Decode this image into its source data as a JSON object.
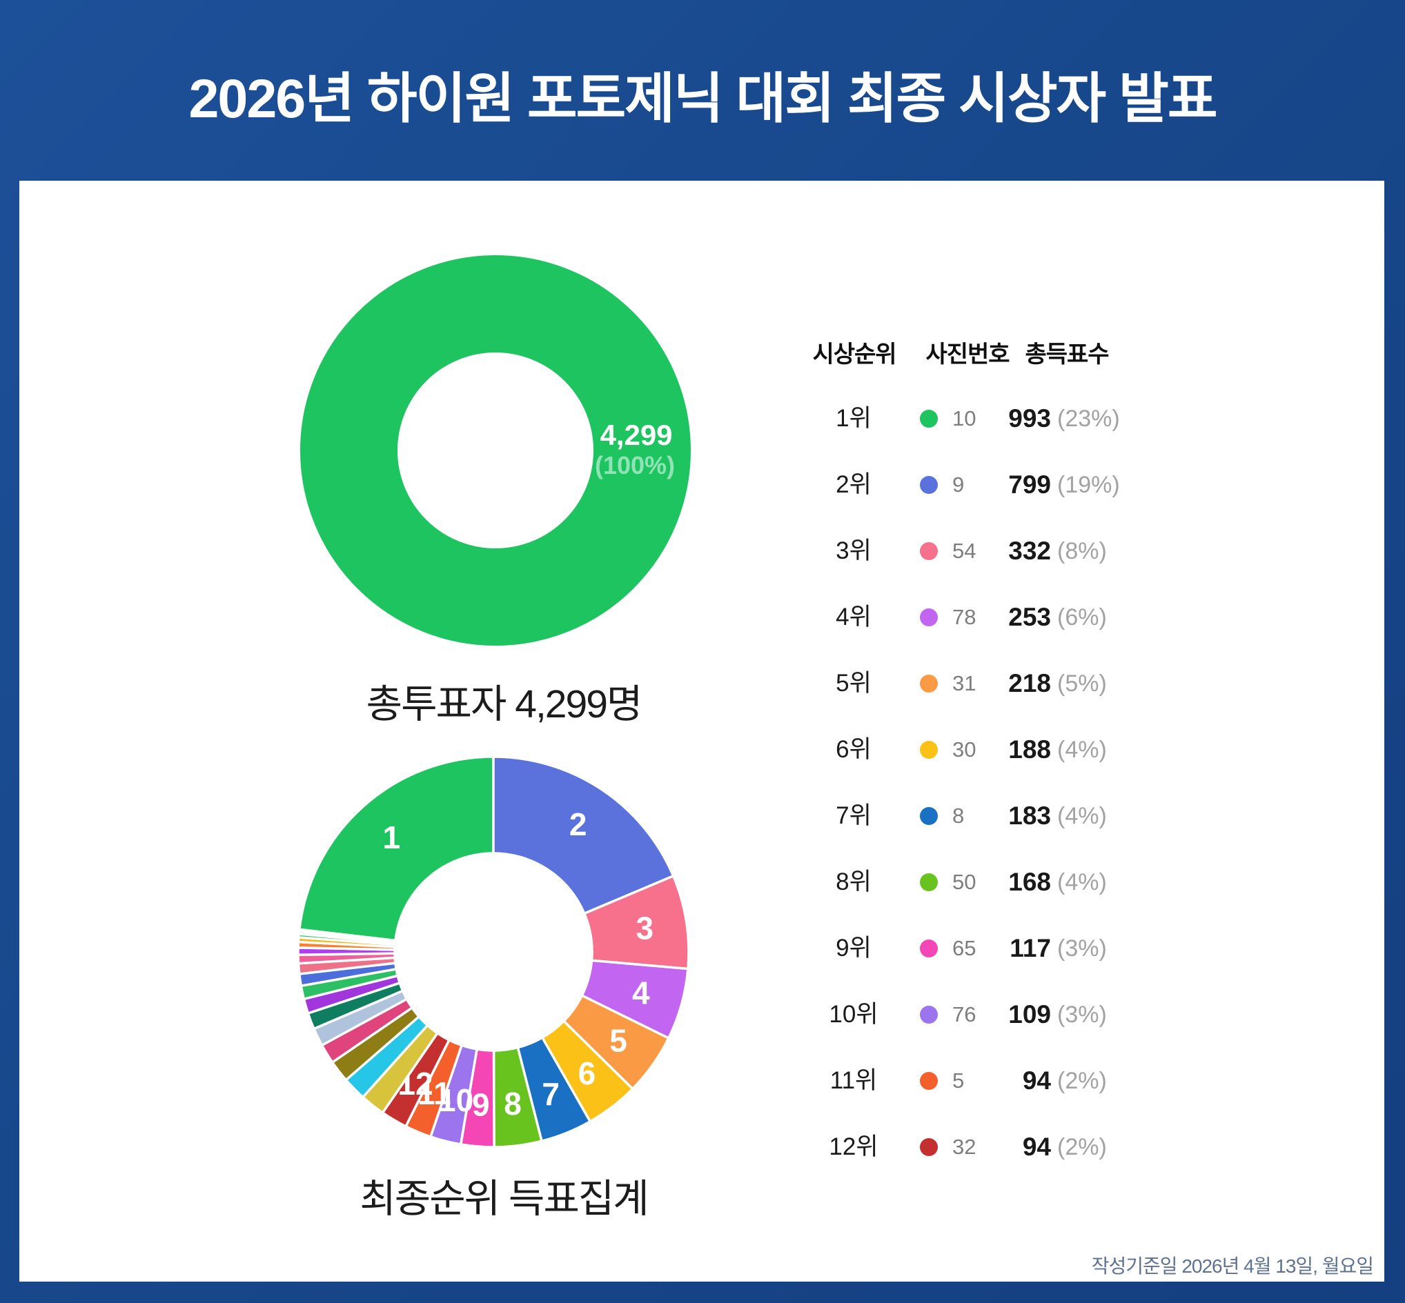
{
  "title": "2026년 하이원 포토제닉 대회 최종 시상자 발표",
  "footer": "작성기준일 2026년 4월 13일, 월요일",
  "colors": {
    "background": "#174689",
    "panel": "#ffffff",
    "title_text": "#ffffff",
    "footer_text": "#5d7292",
    "slice_label_text": "#ffffff",
    "total_center_pct_text": "#8fe3b5"
  },
  "donut_total": {
    "caption": "총투표자 4,299명",
    "center_value": "4,299",
    "center_pct": "(100%)",
    "color": "#1ec45f"
  },
  "donut_ranking": {
    "caption": "최종순위 득표집계"
  },
  "table": {
    "headers": [
      "시상순위",
      "사진번호",
      "총득표수"
    ],
    "rows": [
      {
        "rank": "1위",
        "photo": "10",
        "votes": "993",
        "pct": "(23%)",
        "color": "#1ec45f"
      },
      {
        "rank": "2위",
        "photo": "9",
        "votes": "799",
        "pct": "(19%)",
        "color": "#5b72dd"
      },
      {
        "rank": "3위",
        "photo": "54",
        "votes": "332",
        "pct": "(8%)",
        "color": "#f7708c"
      },
      {
        "rank": "4위",
        "photo": "78",
        "votes": "253",
        "pct": "(6%)",
        "color": "#c266f2"
      },
      {
        "rank": "5위",
        "photo": "31",
        "votes": "218",
        "pct": "(5%)",
        "color": "#fa9a45"
      },
      {
        "rank": "6위",
        "photo": "30",
        "votes": "188",
        "pct": "(4%)",
        "color": "#fcc117"
      },
      {
        "rank": "7위",
        "photo": "8",
        "votes": "183",
        "pct": "(4%)",
        "color": "#1a70c2"
      },
      {
        "rank": "8위",
        "photo": "50",
        "votes": "168",
        "pct": "(4%)",
        "color": "#68c31f"
      },
      {
        "rank": "9위",
        "photo": "65",
        "votes": "117",
        "pct": "(3%)",
        "color": "#f546b6"
      },
      {
        "rank": "10위",
        "photo": "76",
        "votes": "109",
        "pct": "(3%)",
        "color": "#9b74ee"
      },
      {
        "rank": "11위",
        "photo": "5",
        "votes": "94",
        "pct": "(2%)",
        "color": "#f4602b"
      },
      {
        "rank": "12위",
        "photo": "32",
        "votes": "94",
        "pct": "(2%)",
        "color": "#c43030"
      }
    ]
  },
  "chart_data": [
    {
      "type": "pie",
      "subtype": "donut",
      "title": "총투표자 4,299명",
      "labels": [
        "총투표자"
      ],
      "values": [
        4299
      ],
      "pct_labels": [
        "100%"
      ],
      "colors": [
        "#1ec45f"
      ],
      "center_label": "4,299 (100%)",
      "legend": "none"
    },
    {
      "type": "pie",
      "subtype": "donut",
      "title": "최종순위 득표집계",
      "total_votes": 4299,
      "labels": [
        "1",
        "2",
        "3",
        "4",
        "5",
        "6",
        "7",
        "8",
        "9",
        "10",
        "11",
        "12"
      ],
      "values": [
        993,
        799,
        332,
        253,
        218,
        188,
        183,
        168,
        117,
        109,
        94,
        94
      ],
      "pct_labels": [
        "23%",
        "19%",
        "8%",
        "6%",
        "5%",
        "4%",
        "4%",
        "4%",
        "3%",
        "3%",
        "2%",
        "2%"
      ],
      "colors": [
        "#1ec45f",
        "#5b72dd",
        "#f7708c",
        "#c266f2",
        "#fa9a45",
        "#fcc117",
        "#1a70c2",
        "#68c31f",
        "#f546b6",
        "#9b74ee",
        "#f4602b",
        "#c43030"
      ],
      "others_unlabeled_estimated": {
        "values": [
          88,
          84,
          78,
          70,
          64,
          58,
          52,
          47,
          42,
          37,
          30,
          25,
          20,
          16,
          12,
          9,
          4,
          3
        ],
        "colors": [
          "#d7c33c",
          "#25c6e6",
          "#8e7d15",
          "#e0447c",
          "#afc3dd",
          "#0f7e60",
          "#a136dd",
          "#2dbf63",
          "#4b6edc",
          "#ee7189",
          "#f06098",
          "#ae3ff0",
          "#f58233",
          "#f7b81c",
          "#2ec46a",
          "#3b82d9",
          "#12a08c",
          "#f09030"
        ]
      },
      "layout": {
        "start": "slice 1 ends at 12 o'clock, clockwise",
        "legend": "none"
      }
    }
  ]
}
